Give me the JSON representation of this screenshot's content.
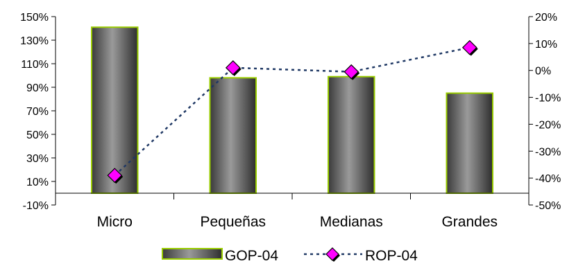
{
  "chart_data": {
    "type": "bar",
    "categories": [
      "Micro",
      "Pequeñas",
      "Medianas",
      "Grandes"
    ],
    "series": [
      {
        "name": "GOP-04",
        "type": "bar",
        "axis": "left",
        "values": [
          141,
          98,
          99,
          85
        ],
        "color": "#6a6a6a",
        "border_color": "#99cc00"
      },
      {
        "name": "ROP-04",
        "type": "line",
        "axis": "right",
        "values": [
          -39,
          1,
          -0.5,
          8.5
        ],
        "color": "#1f3864",
        "marker_color": "#ff00ff"
      }
    ],
    "left_axis": {
      "min": -10,
      "max": 150,
      "step": 20,
      "ticks": [
        "-10%",
        "10%",
        "30%",
        "50%",
        "70%",
        "90%",
        "110%",
        "130%",
        "150%"
      ]
    },
    "right_axis": {
      "min": -50,
      "max": 20,
      "step": 10,
      "ticks": [
        "-50%",
        "-40%",
        "-30%",
        "-20%",
        "-10%",
        "0%",
        "10%",
        "20%"
      ]
    },
    "category_axis_crosses_at": 0,
    "grid": false,
    "legend": "bottom"
  }
}
